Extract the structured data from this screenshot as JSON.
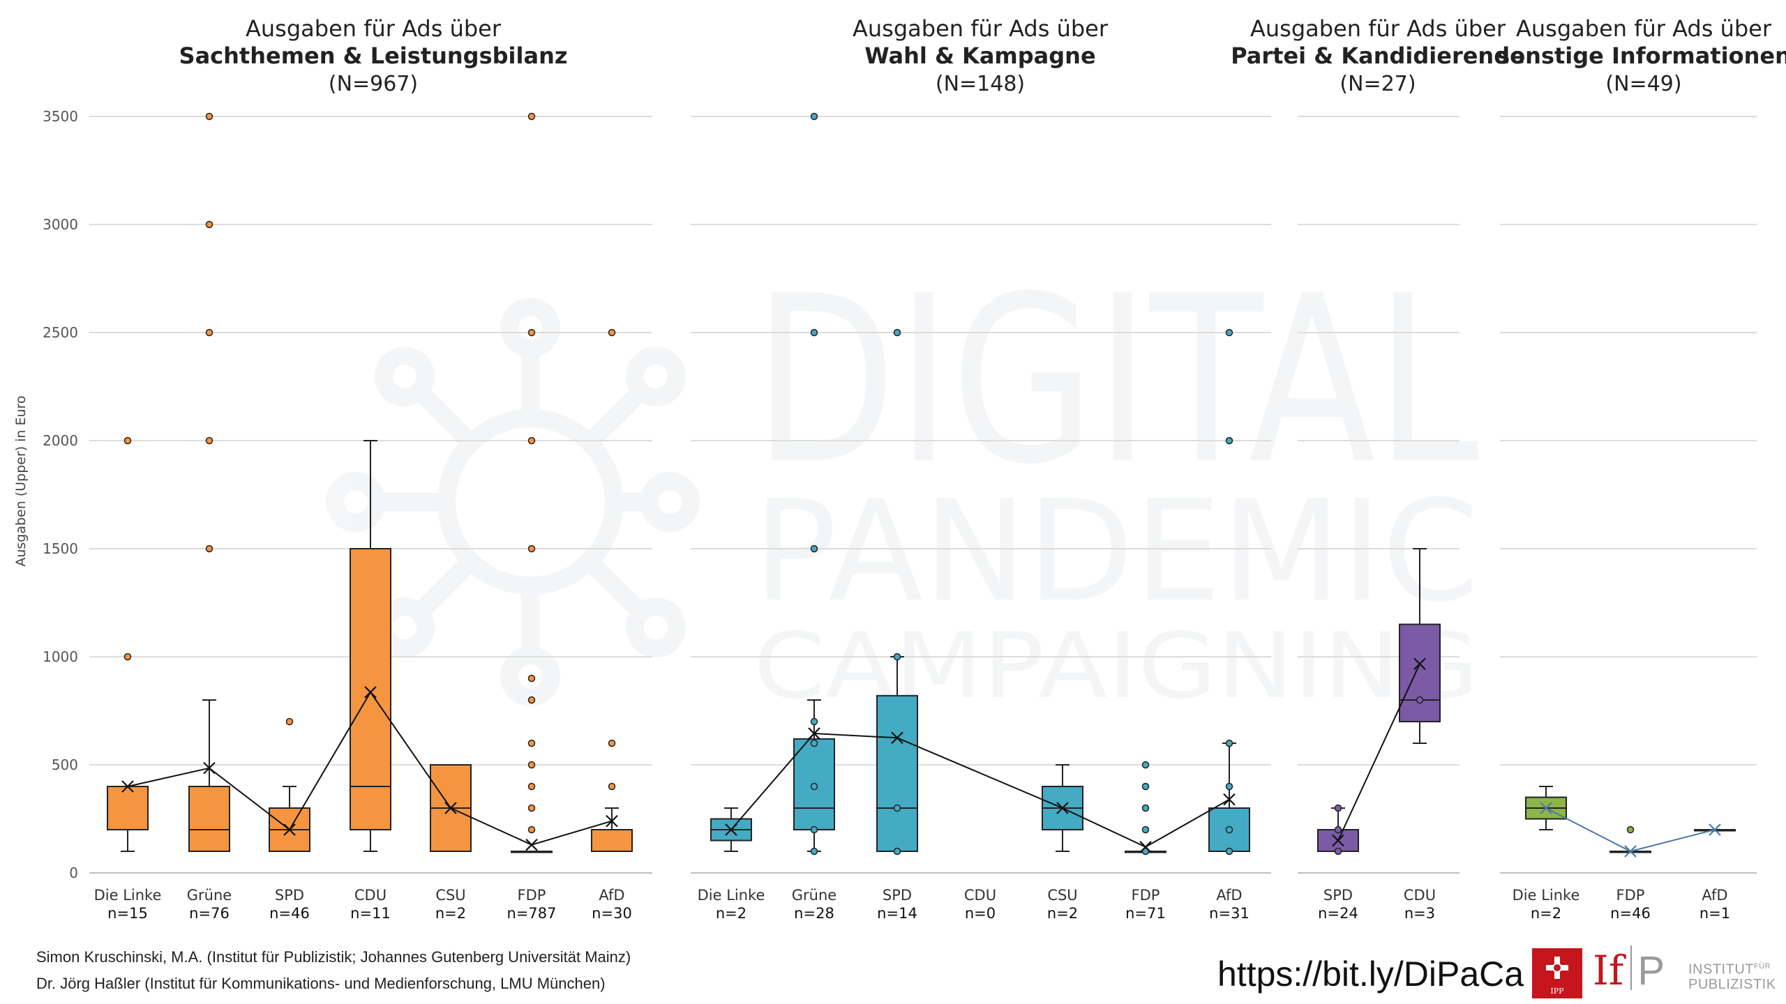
{
  "chart_data": {
    "type": "box",
    "ylabel": "Ausgaben (Upper) in Euro",
    "ylim": [
      0,
      3500
    ],
    "yticks": [
      0,
      500,
      1000,
      1500,
      2000,
      2500,
      3000,
      3500
    ],
    "grid": true,
    "panels": [
      {
        "title_prefix": "Ausgaben für Ads über",
        "title_bold": "Sachthemen & Leistungsbilanz",
        "title_n": "(N=967)",
        "color": "#f5953f",
        "categories": [
          {
            "label": "Die Linke",
            "n": "n=15",
            "q1": 200,
            "median": null,
            "q3": 400,
            "wlow": 100,
            "whigh": 400,
            "mean": 400,
            "outliers": [
              1000,
              2000
            ]
          },
          {
            "label": "Grüne",
            "n": "n=76",
            "q1": 100,
            "median": 200,
            "q3": 400,
            "wlow": 100,
            "whigh": 800,
            "mean": 485,
            "outliers": [
              1500,
              2000,
              2500,
              3000,
              3500
            ]
          },
          {
            "label": "SPD",
            "n": "n=46",
            "q1": 100,
            "median": 200,
            "q3": 300,
            "wlow": 100,
            "whigh": 400,
            "mean": 200,
            "outliers": [
              700
            ]
          },
          {
            "label": "CDU",
            "n": "n=11",
            "q1": 200,
            "median": 400,
            "q3": 1500,
            "wlow": 100,
            "whigh": 2000,
            "mean": 836,
            "outliers": []
          },
          {
            "label": "CSU",
            "n": "n=2",
            "q1": 100,
            "median": 300,
            "q3": 500,
            "wlow": 100,
            "whigh": 500,
            "mean": 300,
            "outliers": []
          },
          {
            "label": "FDP",
            "n": "n=787",
            "q1": 100,
            "median": 100,
            "q3": 100,
            "wlow": 100,
            "whigh": 100,
            "mean": 130,
            "outliers": [
              200,
              300,
              400,
              500,
              600,
              800,
              900,
              1500,
              2000,
              2500,
              3500
            ]
          },
          {
            "label": "AfD",
            "n": "n=30",
            "q1": 100,
            "median": 200,
            "q3": 200,
            "wlow": 100,
            "whigh": 300,
            "mean": 240,
            "outliers": [
              400,
              600,
              2500
            ]
          }
        ]
      },
      {
        "title_prefix": "Ausgaben für Ads über",
        "title_bold": "Wahl & Kampagne",
        "title_n": "(N=148)",
        "color": "#45aac4",
        "categories": [
          {
            "label": "Die Linke",
            "n": "n=2",
            "q1": 150,
            "median": 200,
            "q3": 250,
            "wlow": 100,
            "whigh": 300,
            "mean": 200,
            "outliers": []
          },
          {
            "label": "Grüne",
            "n": "n=28",
            "q1": 200,
            "median": 300,
            "q3": 620,
            "wlow": 100,
            "whigh": 800,
            "mean": 645,
            "outliers": [
              100,
              200,
              400,
              600,
              700,
              1500,
              2500,
              3500
            ]
          },
          {
            "label": "SPD",
            "n": "n=14",
            "q1": 100,
            "median": 300,
            "q3": 820,
            "wlow": 100,
            "whigh": 1000,
            "mean": 625,
            "outliers": [
              100,
              300,
              1000,
              2500
            ]
          },
          {
            "label": "CDU",
            "n": "n=0",
            "q1": null,
            "median": null,
            "q3": null,
            "wlow": null,
            "whigh": null,
            "mean": null,
            "outliers": []
          },
          {
            "label": "CSU",
            "n": "n=2",
            "q1": 200,
            "median": 300,
            "q3": 400,
            "wlow": 100,
            "whigh": 500,
            "mean": 300,
            "outliers": []
          },
          {
            "label": "FDP",
            "n": "n=71",
            "q1": 100,
            "median": 100,
            "q3": 100,
            "wlow": 100,
            "whigh": 100,
            "mean": 120,
            "outliers": [
              100,
              200,
              300,
              400,
              500
            ]
          },
          {
            "label": "AfD",
            "n": "n=31",
            "q1": 100,
            "median": 300,
            "q3": 300,
            "wlow": 100,
            "whigh": 600,
            "mean": 340,
            "outliers": [
              100,
              200,
              400,
              600,
              2000,
              2500
            ]
          }
        ]
      },
      {
        "title_prefix": "Ausgaben für Ads über",
        "title_bold": "Partei & Kandidierende",
        "title_n": "(N=27)",
        "color": "#7b5ba6",
        "categories": [
          {
            "label": "SPD",
            "n": "n=24",
            "q1": 100,
            "median": 200,
            "q3": 200,
            "wlow": 100,
            "whigh": 300,
            "mean": 150,
            "outliers": [
              100,
              200,
              300
            ]
          },
          {
            "label": "CDU",
            "n": "n=3",
            "q1": 700,
            "median": 800,
            "q3": 1150,
            "wlow": 600,
            "whigh": 1500,
            "mean": 967,
            "outliers": [
              800
            ]
          }
        ]
      },
      {
        "title_prefix": "Ausgaben für Ads über",
        "title_bold": "sonstige Informationen",
        "title_n": "(N=49)",
        "color": "#8db549",
        "mean_line_color": "#4a78a8",
        "categories": [
          {
            "label": "Die Linke",
            "n": "n=2",
            "q1": 250,
            "median": 300,
            "q3": 350,
            "wlow": 200,
            "whigh": 400,
            "mean": 300,
            "outliers": []
          },
          {
            "label": "FDP",
            "n": "n=46",
            "q1": 100,
            "median": 100,
            "q3": 100,
            "wlow": 100,
            "whigh": 100,
            "mean": 100,
            "outliers": [
              200
            ]
          },
          {
            "label": "AfD",
            "n": "n=1",
            "q1": 200,
            "median": 200,
            "q3": 200,
            "wlow": 200,
            "whigh": 200,
            "mean": 200,
            "outliers": []
          }
        ]
      }
    ]
  },
  "watermark": {
    "line1": "DIGITAL",
    "line2": "PANDEMIC",
    "line3": "CAMPAIGNING"
  },
  "footer": {
    "credit_1": "Simon Kruschinski, M.A. (Institut für Publizistik; Johannes Gutenberg Universität Mainz)",
    "credit_2": "Dr. Jörg Haßler (Institut für Kommunikations- und Medienforschung, LMU München)",
    "url": "https://bit.ly/DiPaCa"
  },
  "logos": {
    "ipp_text": "IPP",
    "if_letters": "If",
    "if_p": "P",
    "if_word_1": "INSTITUT",
    "if_word_sup": "FÜR",
    "if_word_2": "PUBLIZISTIK"
  }
}
